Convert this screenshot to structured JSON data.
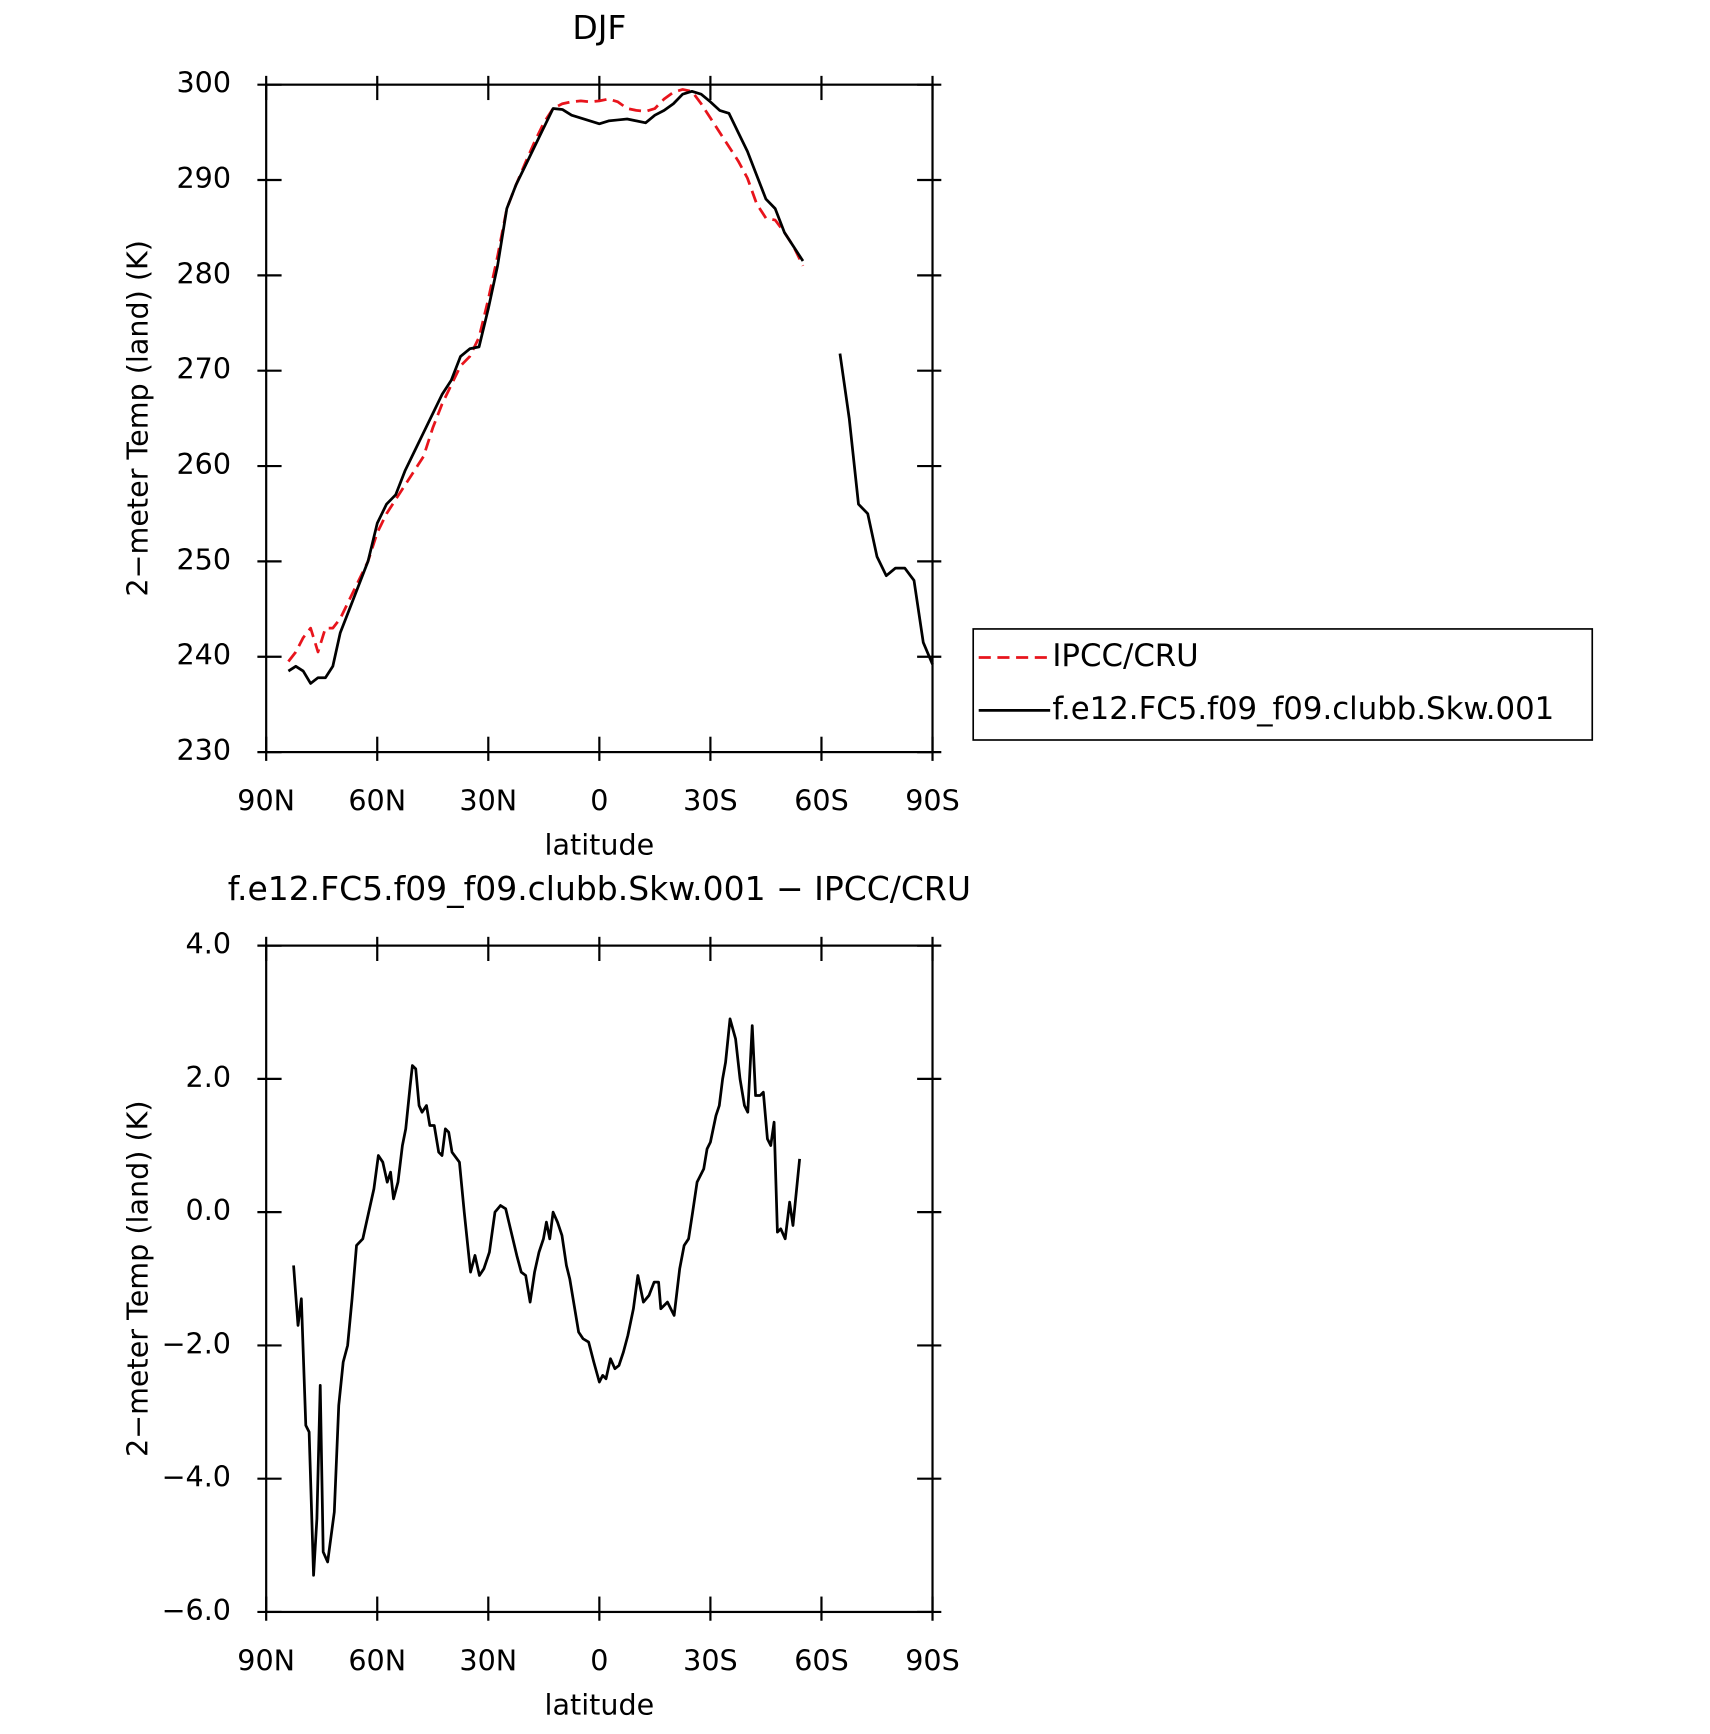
{
  "chart_data": [
    {
      "type": "line",
      "title": "DJF",
      "x_label": "latitude",
      "y_label": "2−meter Temp (land) (K)",
      "xlim": [
        90,
        -90
      ],
      "xticks": [
        {
          "value": 90,
          "label": "90N"
        },
        {
          "value": 60,
          "label": "60N"
        },
        {
          "value": 30,
          "label": "30N"
        },
        0,
        {
          "value": -30,
          "label": "30S"
        },
        {
          "value": -60,
          "label": "60S"
        },
        {
          "value": -90,
          "label": "90S"
        }
      ],
      "ylim": [
        230,
        300
      ],
      "yticks": [
        230,
        240,
        250,
        260,
        270,
        280,
        290,
        300
      ],
      "legend": "right",
      "x": [
        84,
        82,
        80,
        78,
        76,
        74,
        72,
        70,
        67.5,
        65,
        62.5,
        60,
        57.5,
        55,
        52.5,
        50,
        47.5,
        45,
        42.5,
        40,
        37.5,
        35,
        32.5,
        30,
        27.5,
        25,
        22.5,
        20,
        17.5,
        15,
        12.5,
        10,
        7.5,
        5,
        2.5,
        0,
        -2.5,
        -5,
        -7.5,
        -10,
        -12.5,
        -15,
        -17.5,
        -20,
        -22.5,
        -25,
        -27.5,
        -30,
        -32.5,
        -35,
        -37.5,
        -40,
        -42.5,
        -45,
        -47.5,
        -50,
        -52.5,
        -55,
        -60,
        -65,
        -67.5,
        -70,
        -72.5,
        -75,
        -77.5,
        -80,
        -82.5,
        -85,
        -87.5,
        -90
      ],
      "series": [
        {
          "name": "IPCC/CRU",
          "color": "#e8141c",
          "line_style": "dashed",
          "values": [
            239.5,
            240.5,
            242,
            243,
            240.5,
            243,
            243,
            244,
            246,
            248,
            250,
            253,
            255,
            256.5,
            258,
            259.5,
            261,
            264,
            266.5,
            268.5,
            270.5,
            271.5,
            273.5,
            277.5,
            282,
            287,
            289.5,
            291.8,
            294,
            296,
            297.5,
            298,
            298.2,
            298.3,
            298.2,
            298.3,
            298.5,
            298.2,
            297.5,
            297.3,
            297.2,
            297.5,
            298.5,
            299.2,
            299.5,
            299.3,
            298,
            296.5,
            295,
            293.5,
            292,
            290.2,
            287.5,
            286,
            285.8,
            284.5,
            283,
            281,
            null,
            null,
            null,
            null,
            null,
            null,
            null,
            null,
            null,
            null,
            null,
            null
          ]
        },
        {
          "name": "f.e12.FC5.f09_f09.clubb.Skw.001",
          "color": "#000000",
          "line_style": "solid",
          "values": [
            238.5,
            239,
            238.5,
            237.2,
            237.8,
            237.8,
            239,
            242.5,
            245,
            247.5,
            250,
            254,
            256,
            257,
            259.5,
            261.5,
            263.5,
            265.5,
            267.5,
            269,
            271.5,
            272.3,
            272.5,
            276.5,
            281,
            287,
            289.5,
            291.5,
            293.5,
            295.5,
            297.5,
            297.4,
            296.8,
            296.5,
            296.2,
            295.9,
            296.2,
            296.3,
            296.4,
            296.2,
            296,
            296.8,
            297.3,
            298,
            299,
            299.3,
            299,
            298.2,
            297.3,
            297,
            295,
            293,
            290.5,
            288,
            287,
            284.5,
            283,
            281.5,
            null,
            271.8,
            265,
            256,
            255,
            250.5,
            248.5,
            249.3,
            249.3,
            248,
            241.5,
            239.2
          ]
        }
      ]
    },
    {
      "type": "line",
      "title": "f.e12.FC5.f09_f09.clubb.Skw.001 − IPCC/CRU",
      "x_label": "latitude",
      "y_label": "2−meter Temp (land) (K)",
      "xlim": [
        90,
        -90
      ],
      "xticks": [
        {
          "value": 90,
          "label": "90N"
        },
        {
          "value": 60,
          "label": "60N"
        },
        {
          "value": 30,
          "label": "30N"
        },
        0,
        {
          "value": -30,
          "label": "30S"
        },
        {
          "value": -60,
          "label": "60S"
        },
        {
          "value": -90,
          "label": "90S"
        }
      ],
      "ylim": [
        -6,
        4
      ],
      "yticks": [
        {
          "value": -6,
          "label": "−6.0"
        },
        {
          "value": -4,
          "label": "−4.0"
        },
        {
          "value": -2,
          "label": "−2.0"
        },
        {
          "value": 0,
          "label": "0.0"
        },
        {
          "value": 2,
          "label": "2.0"
        },
        {
          "value": 4,
          "label": "4.0"
        }
      ],
      "x": [
        82.6,
        81.4,
        80.5,
        79.3,
        78.4,
        77.2,
        76.3,
        75.4,
        74.6,
        73.4,
        71.6,
        70.4,
        69.2,
        68,
        66.8,
        65.6,
        63.9,
        62.1,
        60.9,
        59.7,
        58.5,
        57.3,
        56.4,
        55.6,
        54.4,
        53.2,
        52.3,
        51.1,
        50.5,
        49.6,
        48.7,
        47.9,
        46.7,
        45.8,
        44.6,
        43.4,
        42.5,
        41.6,
        40.7,
        39.8,
        37.8,
        36.5,
        34.8,
        33.6,
        32.4,
        31.2,
        29.7,
        28.2,
        26.7,
        25.3,
        23.8,
        22.3,
        21.1,
        19.9,
        18.7,
        17.5,
        16.3,
        15.1,
        14.3,
        13.4,
        12.5,
        11.3,
        10.1,
        8.9,
        8,
        6.8,
        5.6,
        4.4,
        2.9,
        1.5,
        0,
        -0.9,
        -1.8,
        -3,
        -4.2,
        -5.3,
        -6.5,
        -7.7,
        -9.2,
        -10.4,
        -11.9,
        -13.4,
        -14.8,
        -16,
        -16.6,
        -18.4,
        -20.2,
        -21.7,
        -22.9,
        -24.1,
        -25.2,
        -26.4,
        -28.2,
        -29.1,
        -30,
        -31.5,
        -32.4,
        -33.3,
        -34.1,
        -35.3,
        -36.8,
        -38,
        -39.2,
        -40.1,
        -41.3,
        -42.2,
        -43.4,
        -44.3,
        -45.4,
        -46.3,
        -47.2,
        -48.1,
        -49,
        -50.2,
        -51.4,
        -52.3,
        -54.1
      ],
      "series": [
        {
          "color": "#000000",
          "line_style": "solid",
          "values": [
            -0.8,
            -1.7,
            -1.3,
            -3.2,
            -3.3,
            -5.45,
            -4.6,
            -2.6,
            -5.1,
            -5.25,
            -4.5,
            -2.9,
            -2.25,
            -2.0,
            -1.3,
            -0.5,
            -0.4,
            0.05,
            0.35,
            0.85,
            0.75,
            0.45,
            0.6,
            0.2,
            0.45,
            1.0,
            1.25,
            1.9,
            2.2,
            2.15,
            1.6,
            1.5,
            1.6,
            1.3,
            1.3,
            0.9,
            0.85,
            1.25,
            1.2,
            0.9,
            0.75,
            0.0,
            -0.9,
            -0.65,
            -0.95,
            -0.85,
            -0.6,
            0.0,
            0.1,
            0.05,
            -0.3,
            -0.65,
            -0.9,
            -0.95,
            -1.35,
            -0.9,
            -0.6,
            -0.4,
            -0.15,
            -0.4,
            0.0,
            -0.15,
            -0.35,
            -0.8,
            -1.0,
            -1.4,
            -1.8,
            -1.9,
            -1.95,
            -2.25,
            -2.55,
            -2.45,
            -2.5,
            -2.2,
            -2.35,
            -2.3,
            -2.1,
            -1.85,
            -1.45,
            -0.95,
            -1.35,
            -1.25,
            -1.05,
            -1.05,
            -1.45,
            -1.35,
            -1.55,
            -0.85,
            -0.5,
            -0.4,
            0.0,
            0.45,
            0.65,
            0.95,
            1.05,
            1.45,
            1.6,
            2.0,
            2.25,
            2.9,
            2.6,
            2.0,
            1.6,
            1.5,
            2.8,
            1.75,
            1.75,
            1.8,
            1.1,
            1.0,
            1.35,
            -0.3,
            -0.25,
            -0.4,
            0.15,
            -0.2,
            0.8
          ]
        }
      ]
    }
  ]
}
